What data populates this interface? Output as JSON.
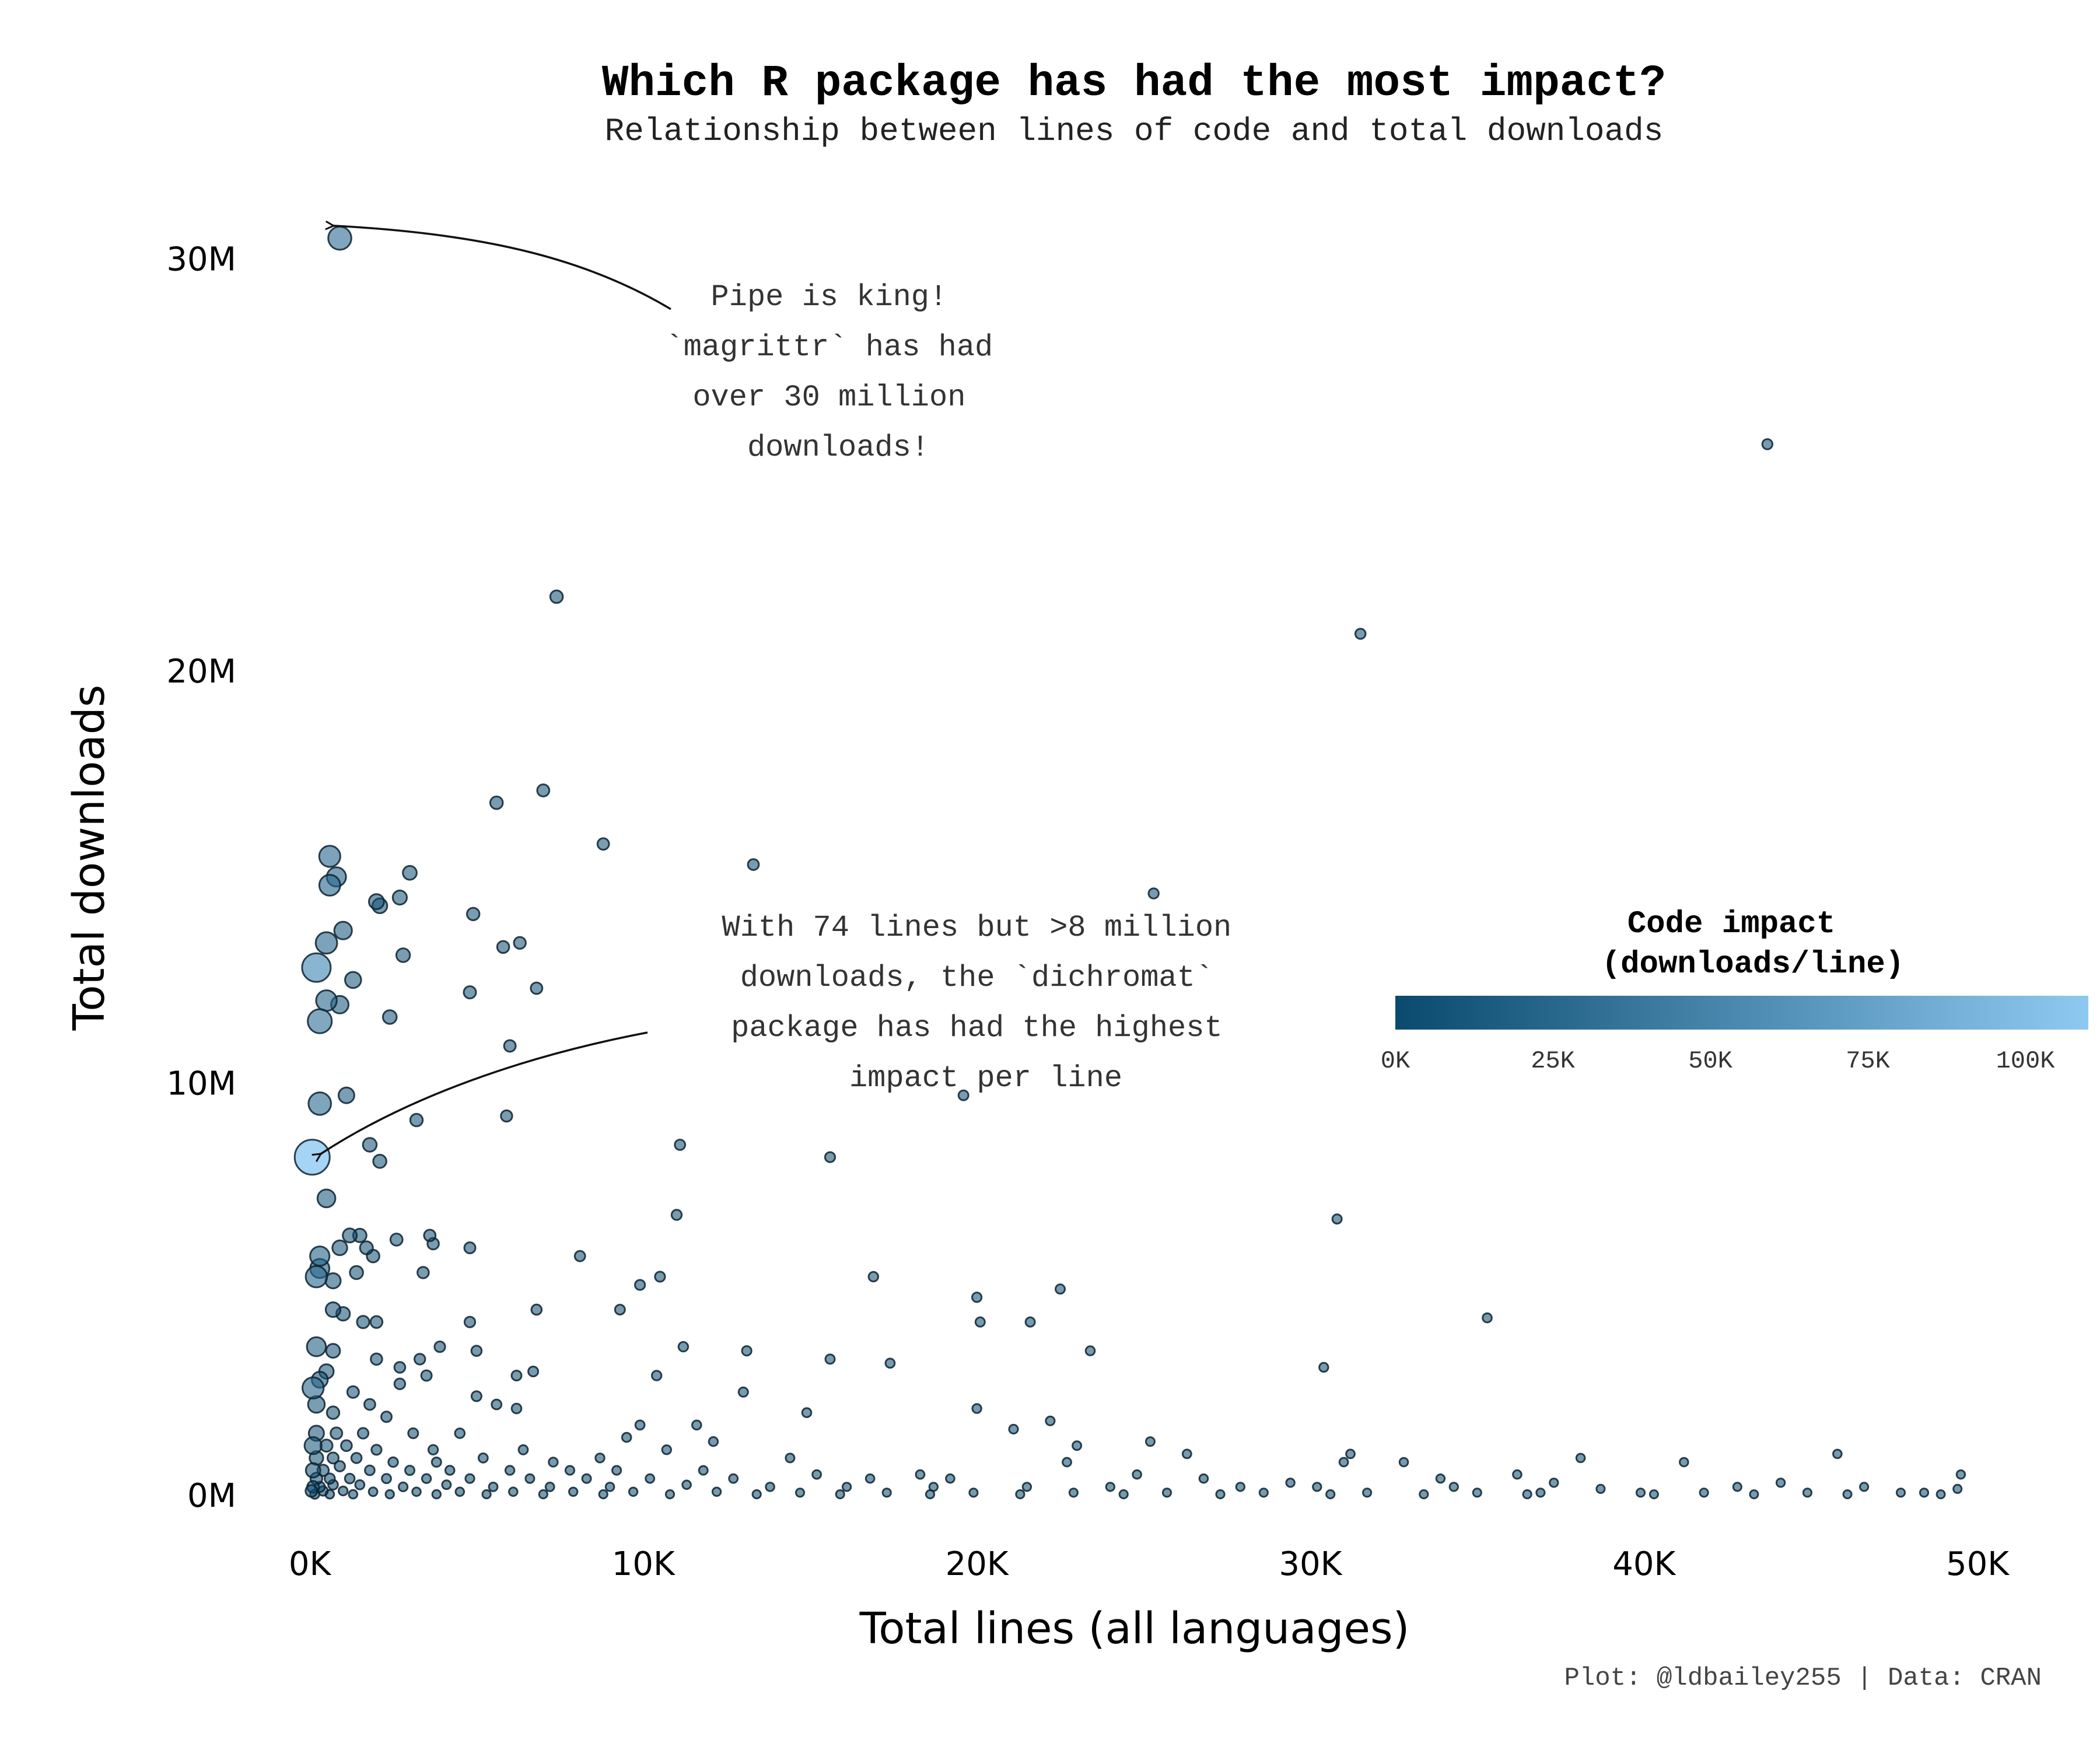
{
  "chart_data": {
    "type": "scatter",
    "title": "Which R package has had the most impact?",
    "subtitle": "Relationship between lines of code and total downloads",
    "xlabel": "Total lines (all languages)",
    "ylabel": "Total downloads",
    "xlim": [
      0,
      50000
    ],
    "ylim": [
      0,
      31000000
    ],
    "x_ticks": [
      0,
      10000,
      20000,
      30000,
      40000,
      50000
    ],
    "x_tick_labels": [
      "0K",
      "10K",
      "20K",
      "30K",
      "40K",
      "50K"
    ],
    "y_ticks": [
      0,
      10000000,
      20000000,
      30000000
    ],
    "y_tick_labels": [
      "0M",
      "10M",
      "20M",
      "30M"
    ],
    "grid": false,
    "color_encoding": "downloads per line",
    "color_scale": {
      "low": "#0a4a6e",
      "high": "#8ec9f2",
      "domain": [
        0,
        110000
      ]
    },
    "legend": {
      "title_line1": "Code impact",
      "title_line2": "(downloads/line)",
      "ticks": [
        0,
        25000,
        50000,
        75000,
        100000
      ],
      "tick_labels": [
        "0K",
        "25K",
        "50K",
        "75K",
        "100K"
      ],
      "placement": "right"
    },
    "points": [
      {
        "x": 900,
        "y": 30500000
      },
      {
        "x": 43700,
        "y": 25500000
      },
      {
        "x": 7400,
        "y": 21800000
      },
      {
        "x": 31500,
        "y": 20900000
      },
      {
        "x": 7000,
        "y": 17100000
      },
      {
        "x": 5600,
        "y": 16800000
      },
      {
        "x": 8800,
        "y": 15800000
      },
      {
        "x": 13300,
        "y": 15300000
      },
      {
        "x": 25300,
        "y": 14600000
      },
      {
        "x": 600,
        "y": 15500000
      },
      {
        "x": 800,
        "y": 15000000
      },
      {
        "x": 3000,
        "y": 15100000
      },
      {
        "x": 600,
        "y": 14800000
      },
      {
        "x": 2000,
        "y": 14400000
      },
      {
        "x": 2100,
        "y": 14300000
      },
      {
        "x": 2700,
        "y": 14500000
      },
      {
        "x": 4900,
        "y": 14100000
      },
      {
        "x": 1000,
        "y": 13700000
      },
      {
        "x": 500,
        "y": 13400000
      },
      {
        "x": 5800,
        "y": 13300000
      },
      {
        "x": 6300,
        "y": 13400000
      },
      {
        "x": 2800,
        "y": 13100000
      },
      {
        "x": 200,
        "y": 12800000
      },
      {
        "x": 1300,
        "y": 12500000
      },
      {
        "x": 6800,
        "y": 12300000
      },
      {
        "x": 4800,
        "y": 12200000
      },
      {
        "x": 500,
        "y": 12000000
      },
      {
        "x": 900,
        "y": 11900000
      },
      {
        "x": 300,
        "y": 11500000
      },
      {
        "x": 2400,
        "y": 11600000
      },
      {
        "x": 6000,
        "y": 10900000
      },
      {
        "x": 19600,
        "y": 9700000
      },
      {
        "x": 1100,
        "y": 9700000
      },
      {
        "x": 300,
        "y": 9500000
      },
      {
        "x": 3200,
        "y": 9100000
      },
      {
        "x": 5900,
        "y": 9200000
      },
      {
        "x": 11100,
        "y": 8500000
      },
      {
        "x": 1800,
        "y": 8500000
      },
      {
        "x": 74,
        "y": 8200000
      },
      {
        "x": 2100,
        "y": 8100000
      },
      {
        "x": 15600,
        "y": 8200000
      },
      {
        "x": 500,
        "y": 7200000
      },
      {
        "x": 30800,
        "y": 6700000
      },
      {
        "x": 11000,
        "y": 6800000
      },
      {
        "x": 1200,
        "y": 6300000
      },
      {
        "x": 1500,
        "y": 6300000
      },
      {
        "x": 2600,
        "y": 6200000
      },
      {
        "x": 3600,
        "y": 6300000
      },
      {
        "x": 3700,
        "y": 6100000
      },
      {
        "x": 900,
        "y": 6000000
      },
      {
        "x": 1700,
        "y": 6000000
      },
      {
        "x": 4800,
        "y": 6000000
      },
      {
        "x": 1900,
        "y": 5800000
      },
      {
        "x": 300,
        "y": 5800000
      },
      {
        "x": 8100,
        "y": 5800000
      },
      {
        "x": 300,
        "y": 5500000
      },
      {
        "x": 3400,
        "y": 5400000
      },
      {
        "x": 1400,
        "y": 5400000
      },
      {
        "x": 10500,
        "y": 5300000
      },
      {
        "x": 16900,
        "y": 5300000
      },
      {
        "x": 200,
        "y": 5300000
      },
      {
        "x": 700,
        "y": 5200000
      },
      {
        "x": 9900,
        "y": 5100000
      },
      {
        "x": 22500,
        "y": 5000000
      },
      {
        "x": 20000,
        "y": 4800000
      },
      {
        "x": 6800,
        "y": 4500000
      },
      {
        "x": 9300,
        "y": 4500000
      },
      {
        "x": 700,
        "y": 4500000
      },
      {
        "x": 1000,
        "y": 4400000
      },
      {
        "x": 35300,
        "y": 4300000
      },
      {
        "x": 1600,
        "y": 4200000
      },
      {
        "x": 2000,
        "y": 4200000
      },
      {
        "x": 4800,
        "y": 4200000
      },
      {
        "x": 20100,
        "y": 4200000
      },
      {
        "x": 21600,
        "y": 4200000
      },
      {
        "x": 200,
        "y": 3600000
      },
      {
        "x": 700,
        "y": 3500000
      },
      {
        "x": 3900,
        "y": 3600000
      },
      {
        "x": 5000,
        "y": 3500000
      },
      {
        "x": 11200,
        "y": 3600000
      },
      {
        "x": 13100,
        "y": 3500000
      },
      {
        "x": 23400,
        "y": 3500000
      },
      {
        "x": 2000,
        "y": 3300000
      },
      {
        "x": 3300,
        "y": 3300000
      },
      {
        "x": 15600,
        "y": 3300000
      },
      {
        "x": 17400,
        "y": 3200000
      },
      {
        "x": 2700,
        "y": 3100000
      },
      {
        "x": 30400,
        "y": 3100000
      },
      {
        "x": 500,
        "y": 3000000
      },
      {
        "x": 6700,
        "y": 3000000
      },
      {
        "x": 3500,
        "y": 2900000
      },
      {
        "x": 6200,
        "y": 2900000
      },
      {
        "x": 10400,
        "y": 2900000
      },
      {
        "x": 300,
        "y": 2800000
      },
      {
        "x": 2700,
        "y": 2700000
      },
      {
        "x": 100,
        "y": 2600000
      },
      {
        "x": 13000,
        "y": 2500000
      },
      {
        "x": 1300,
        "y": 2500000
      },
      {
        "x": 5000,
        "y": 2400000
      },
      {
        "x": 200,
        "y": 2200000
      },
      {
        "x": 1800,
        "y": 2200000
      },
      {
        "x": 5600,
        "y": 2200000
      },
      {
        "x": 6200,
        "y": 2100000
      },
      {
        "x": 20000,
        "y": 2100000
      },
      {
        "x": 14900,
        "y": 2000000
      },
      {
        "x": 700,
        "y": 2000000
      },
      {
        "x": 2300,
        "y": 1900000
      },
      {
        "x": 22200,
        "y": 1800000
      },
      {
        "x": 9900,
        "y": 1700000
      },
      {
        "x": 11600,
        "y": 1700000
      },
      {
        "x": 21100,
        "y": 1600000
      },
      {
        "x": 200,
        "y": 1500000
      },
      {
        "x": 800,
        "y": 1500000
      },
      {
        "x": 1600,
        "y": 1500000
      },
      {
        "x": 3100,
        "y": 1500000
      },
      {
        "x": 4500,
        "y": 1500000
      },
      {
        "x": 9500,
        "y": 1400000
      },
      {
        "x": 12100,
        "y": 1300000
      },
      {
        "x": 25200,
        "y": 1300000
      },
      {
        "x": 100,
        "y": 1200000
      },
      {
        "x": 500,
        "y": 1200000
      },
      {
        "x": 1100,
        "y": 1200000
      },
      {
        "x": 2000,
        "y": 1100000
      },
      {
        "x": 3700,
        "y": 1100000
      },
      {
        "x": 6400,
        "y": 1100000
      },
      {
        "x": 10700,
        "y": 1100000
      },
      {
        "x": 23000,
        "y": 1200000
      },
      {
        "x": 26300,
        "y": 1000000
      },
      {
        "x": 45800,
        "y": 1000000
      },
      {
        "x": 31200,
        "y": 1000000
      },
      {
        "x": 200,
        "y": 900000
      },
      {
        "x": 700,
        "y": 900000
      },
      {
        "x": 1400,
        "y": 900000
      },
      {
        "x": 2500,
        "y": 800000
      },
      {
        "x": 3800,
        "y": 800000
      },
      {
        "x": 5200,
        "y": 900000
      },
      {
        "x": 7300,
        "y": 800000
      },
      {
        "x": 8700,
        "y": 900000
      },
      {
        "x": 14400,
        "y": 900000
      },
      {
        "x": 22700,
        "y": 800000
      },
      {
        "x": 31000,
        "y": 800000
      },
      {
        "x": 32800,
        "y": 800000
      },
      {
        "x": 38100,
        "y": 900000
      },
      {
        "x": 41200,
        "y": 800000
      },
      {
        "x": 100,
        "y": 600000
      },
      {
        "x": 400,
        "y": 600000
      },
      {
        "x": 900,
        "y": 700000
      },
      {
        "x": 1800,
        "y": 600000
      },
      {
        "x": 3000,
        "y": 600000
      },
      {
        "x": 4200,
        "y": 600000
      },
      {
        "x": 6000,
        "y": 600000
      },
      {
        "x": 7800,
        "y": 600000
      },
      {
        "x": 9200,
        "y": 600000
      },
      {
        "x": 11800,
        "y": 600000
      },
      {
        "x": 15200,
        "y": 500000
      },
      {
        "x": 18300,
        "y": 500000
      },
      {
        "x": 24800,
        "y": 500000
      },
      {
        "x": 36200,
        "y": 500000
      },
      {
        "x": 49500,
        "y": 500000
      },
      {
        "x": 200,
        "y": 400000
      },
      {
        "x": 600,
        "y": 400000
      },
      {
        "x": 1200,
        "y": 400000
      },
      {
        "x": 2300,
        "y": 400000
      },
      {
        "x": 3500,
        "y": 400000
      },
      {
        "x": 4800,
        "y": 400000
      },
      {
        "x": 6600,
        "y": 400000
      },
      {
        "x": 8300,
        "y": 400000
      },
      {
        "x": 10200,
        "y": 400000
      },
      {
        "x": 12700,
        "y": 400000
      },
      {
        "x": 16800,
        "y": 400000
      },
      {
        "x": 19200,
        "y": 400000
      },
      {
        "x": 26800,
        "y": 400000
      },
      {
        "x": 29400,
        "y": 300000
      },
      {
        "x": 33900,
        "y": 400000
      },
      {
        "x": 37300,
        "y": 300000
      },
      {
        "x": 44100,
        "y": 300000
      },
      {
        "x": 100,
        "y": 200000
      },
      {
        "x": 300,
        "y": 200000
      },
      {
        "x": 700,
        "y": 250000
      },
      {
        "x": 1500,
        "y": 250000
      },
      {
        "x": 2800,
        "y": 200000
      },
      {
        "x": 4100,
        "y": 250000
      },
      {
        "x": 5500,
        "y": 200000
      },
      {
        "x": 7200,
        "y": 200000
      },
      {
        "x": 9000,
        "y": 200000
      },
      {
        "x": 11300,
        "y": 250000
      },
      {
        "x": 13800,
        "y": 200000
      },
      {
        "x": 16100,
        "y": 200000
      },
      {
        "x": 18700,
        "y": 200000
      },
      {
        "x": 21500,
        "y": 200000
      },
      {
        "x": 24000,
        "y": 200000
      },
      {
        "x": 27900,
        "y": 200000
      },
      {
        "x": 30200,
        "y": 200000
      },
      {
        "x": 34300,
        "y": 200000
      },
      {
        "x": 38700,
        "y": 150000
      },
      {
        "x": 42800,
        "y": 200000
      },
      {
        "x": 46600,
        "y": 200000
      },
      {
        "x": 49400,
        "y": 150000
      },
      {
        "x": 50,
        "y": 100000
      },
      {
        "x": 400,
        "y": 100000
      },
      {
        "x": 1000,
        "y": 100000
      },
      {
        "x": 1900,
        "y": 80000
      },
      {
        "x": 3200,
        "y": 80000
      },
      {
        "x": 4500,
        "y": 80000
      },
      {
        "x": 6100,
        "y": 80000
      },
      {
        "x": 7900,
        "y": 80000
      },
      {
        "x": 9700,
        "y": 80000
      },
      {
        "x": 12200,
        "y": 80000
      },
      {
        "x": 14700,
        "y": 60000
      },
      {
        "x": 17300,
        "y": 60000
      },
      {
        "x": 19900,
        "y": 60000
      },
      {
        "x": 22900,
        "y": 60000
      },
      {
        "x": 25700,
        "y": 60000
      },
      {
        "x": 28600,
        "y": 60000
      },
      {
        "x": 31700,
        "y": 60000
      },
      {
        "x": 35000,
        "y": 60000
      },
      {
        "x": 36900,
        "y": 60000
      },
      {
        "x": 39900,
        "y": 60000
      },
      {
        "x": 41800,
        "y": 60000
      },
      {
        "x": 44900,
        "y": 60000
      },
      {
        "x": 47700,
        "y": 60000
      },
      {
        "x": 48400,
        "y": 60000
      },
      {
        "x": 150,
        "y": 20000
      },
      {
        "x": 600,
        "y": 20000
      },
      {
        "x": 1300,
        "y": 20000
      },
      {
        "x": 2400,
        "y": 20000
      },
      {
        "x": 3800,
        "y": 20000
      },
      {
        "x": 5300,
        "y": 20000
      },
      {
        "x": 7000,
        "y": 20000
      },
      {
        "x": 8800,
        "y": 20000
      },
      {
        "x": 10800,
        "y": 20000
      },
      {
        "x": 13400,
        "y": 20000
      },
      {
        "x": 15900,
        "y": 20000
      },
      {
        "x": 18600,
        "y": 20000
      },
      {
        "x": 21300,
        "y": 20000
      },
      {
        "x": 24400,
        "y": 20000
      },
      {
        "x": 27300,
        "y": 20000
      },
      {
        "x": 30600,
        "y": 20000
      },
      {
        "x": 33400,
        "y": 20000
      },
      {
        "x": 36500,
        "y": 20000
      },
      {
        "x": 40300,
        "y": 20000
      },
      {
        "x": 43300,
        "y": 20000
      },
      {
        "x": 46100,
        "y": 20000
      },
      {
        "x": 48900,
        "y": 20000
      }
    ],
    "annotations": [
      {
        "lines": [
          "Pipe is king!",
          "`magrittr` has had",
          "over 30 million",
          "downloads!"
        ],
        "target_x": 900,
        "target_y": 30500000
      },
      {
        "lines": [
          "With 74 lines but >8 million",
          "downloads, the `dichromat`",
          "package has had the highest",
          "impact per line"
        ],
        "target_x": 74,
        "target_y": 8200000
      }
    ],
    "caption": "Plot: @ldbailey255 | Data: CRAN"
  }
}
